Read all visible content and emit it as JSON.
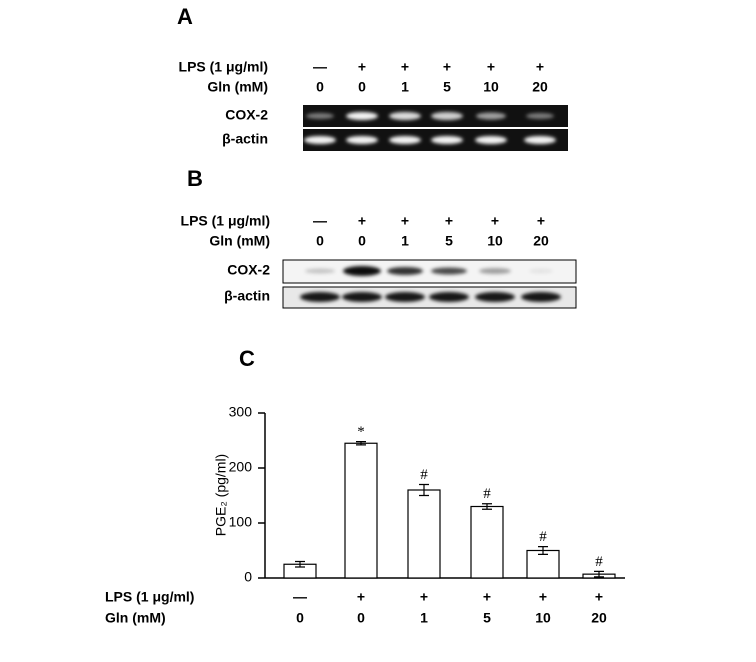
{
  "panel_a": {
    "label": "A",
    "lps_label": "LPS (1 μg/ml)",
    "lps": [
      "—",
      "+",
      "+",
      "+",
      "+",
      "+"
    ],
    "gln_label": "Gln (mM)",
    "gln": [
      "0",
      "0",
      "1",
      "5",
      "10",
      "20"
    ],
    "rows": [
      "COX-2",
      "β-actin"
    ]
  },
  "panel_b": {
    "label": "B",
    "lps_label": "LPS (1 μg/ml)",
    "lps": [
      "—",
      "+",
      "+",
      "+",
      "+",
      "+"
    ],
    "gln_label": "Gln (mM)",
    "gln": [
      "0",
      "0",
      "1",
      "5",
      "10",
      "20"
    ],
    "rows": [
      "COX-2",
      "β-actin"
    ]
  },
  "chart_data": {
    "type": "bar",
    "panel_label": "C",
    "y_label": "PGE₂ (pg/ml)",
    "category_rows": [
      {
        "label": "LPS (1 μg/ml)",
        "values": [
          "—",
          "+",
          "+",
          "+",
          "+",
          "+"
        ]
      },
      {
        "label": "Gln (mM)",
        "values": [
          "0",
          "0",
          "1",
          "5",
          "10",
          "20"
        ]
      }
    ],
    "values": [
      25,
      245,
      160,
      130,
      50,
      7
    ],
    "errors": [
      5,
      3,
      10,
      5,
      7,
      5
    ],
    "annotations": [
      null,
      "*",
      "#",
      "#",
      "#",
      "#"
    ],
    "color": "#ffffff",
    "ylim": [
      0,
      300
    ],
    "yticks": [
      0,
      100,
      200,
      300
    ]
  }
}
